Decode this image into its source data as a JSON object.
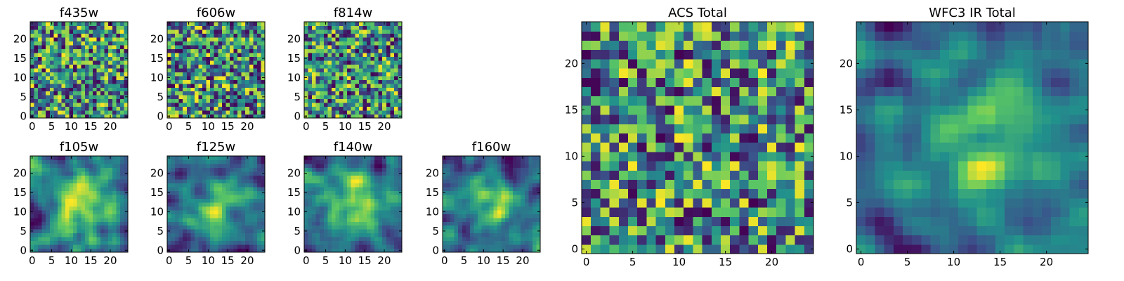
{
  "chart_data": {
    "type": "heatmap",
    "colormap": [
      "#440154",
      "#3b528b",
      "#21918c",
      "#5ec962",
      "#fde725"
    ],
    "panels": [
      {
        "key": "f435w",
        "title": "f435w",
        "grid_size": 25,
        "xlim": [
          -0.5,
          24.5
        ],
        "ylim": [
          -0.5,
          24.5
        ],
        "xticks": [
          0,
          5,
          10,
          15,
          20
        ],
        "yticks": [
          0,
          5,
          10,
          15,
          20
        ],
        "texture": "noise"
      },
      {
        "key": "f606w",
        "title": "f606w",
        "grid_size": 25,
        "xlim": [
          -0.5,
          24.5
        ],
        "ylim": [
          -0.5,
          24.5
        ],
        "xticks": [
          0,
          5,
          10,
          15,
          20
        ],
        "yticks": [
          0,
          5,
          10,
          15,
          20
        ],
        "texture": "noise"
      },
      {
        "key": "f814w",
        "title": "f814w",
        "grid_size": 25,
        "xlim": [
          -0.5,
          24.5
        ],
        "ylim": [
          -0.5,
          24.5
        ],
        "xticks": [
          0,
          5,
          10,
          15,
          20
        ],
        "yticks": [
          0,
          5,
          10,
          15,
          20
        ],
        "texture": "noise"
      },
      {
        "key": "f105w",
        "title": "f105w",
        "grid_size": 25,
        "xlim": [
          -0.5,
          24.5
        ],
        "ylim": [
          -0.5,
          24.5
        ],
        "xticks": [
          0,
          5,
          10,
          15,
          20
        ],
        "yticks": [
          0,
          5,
          10,
          15,
          20
        ],
        "texture": "smooth"
      },
      {
        "key": "f125w",
        "title": "f125w",
        "grid_size": 25,
        "xlim": [
          -0.5,
          24.5
        ],
        "ylim": [
          -0.5,
          24.5
        ],
        "xticks": [
          0,
          5,
          10,
          15,
          20
        ],
        "yticks": [
          0,
          5,
          10,
          15,
          20
        ],
        "texture": "smooth"
      },
      {
        "key": "f140w",
        "title": "f140w",
        "grid_size": 25,
        "xlim": [
          -0.5,
          24.5
        ],
        "ylim": [
          -0.5,
          24.5
        ],
        "xticks": [
          0,
          5,
          10,
          15,
          20
        ],
        "yticks": [
          0,
          5,
          10,
          15,
          20
        ],
        "texture": "smooth"
      },
      {
        "key": "f160w",
        "title": "f160w",
        "grid_size": 25,
        "xlim": [
          -0.5,
          24.5
        ],
        "ylim": [
          -0.5,
          24.5
        ],
        "xticks": [
          0,
          5,
          10,
          15,
          20
        ],
        "yticks": [
          0,
          5,
          10,
          15,
          20
        ],
        "texture": "smooth"
      },
      {
        "key": "acs_total",
        "title": "ACS Total",
        "grid_size": 25,
        "xlim": [
          -0.5,
          24.5
        ],
        "ylim": [
          -0.5,
          24.5
        ],
        "xticks": [
          0,
          5,
          10,
          15,
          20
        ],
        "yticks": [
          0,
          5,
          10,
          15,
          20
        ],
        "texture": "noise"
      },
      {
        "key": "wfc3_ir_total",
        "title": "WFC3 IR Total",
        "grid_size": 25,
        "xlim": [
          -0.5,
          24.5
        ],
        "ylim": [
          -0.5,
          24.5
        ],
        "xticks": [
          0,
          5,
          10,
          15,
          20
        ],
        "yticks": [
          0,
          5,
          10,
          15,
          20
        ],
        "texture": "smooth"
      }
    ]
  }
}
